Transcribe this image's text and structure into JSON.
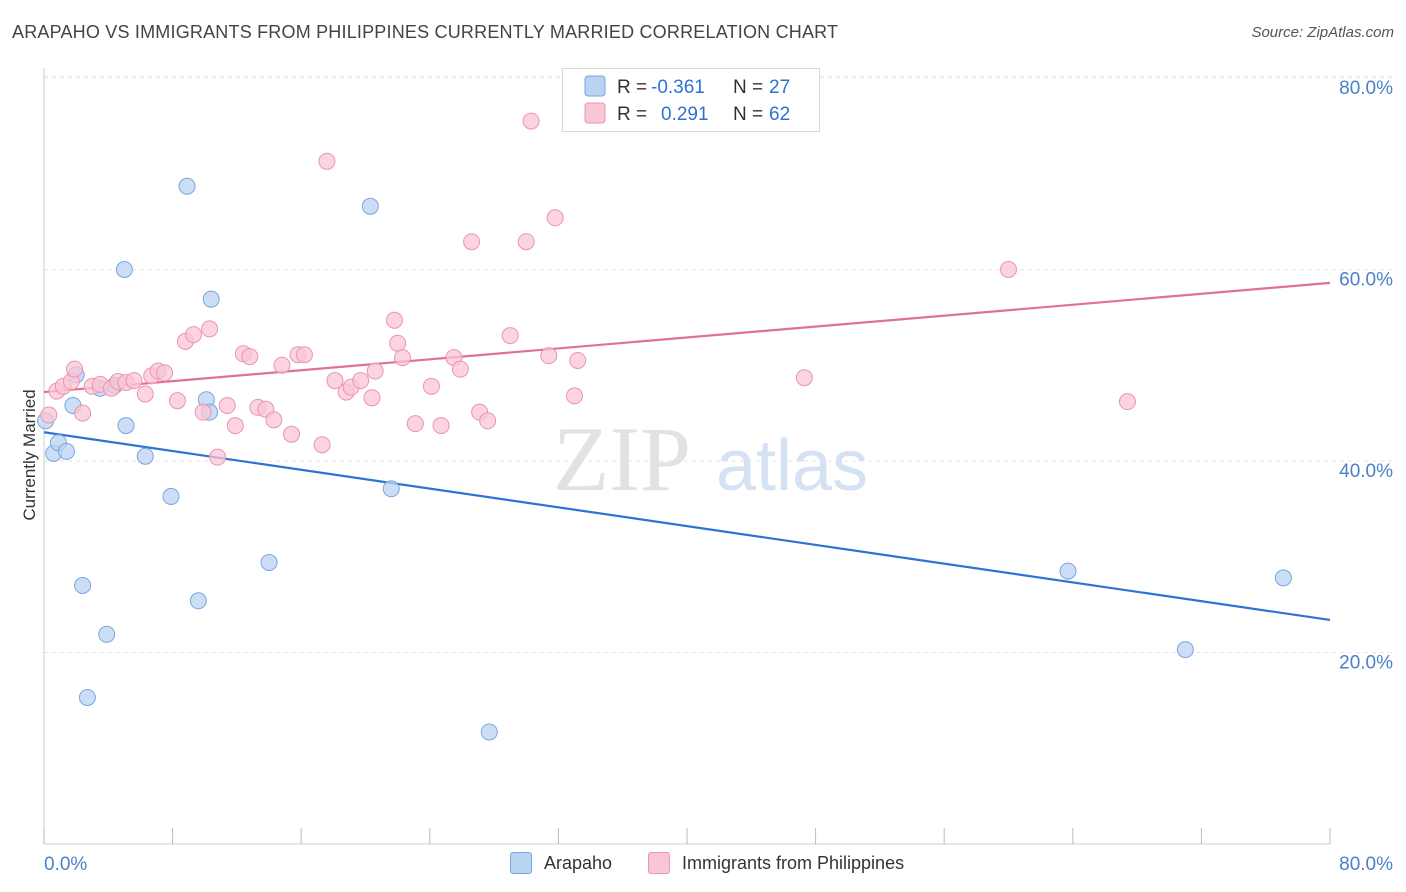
{
  "title": "ARAPAHO VS IMMIGRANTS FROM PHILIPPINES CURRENTLY MARRIED CORRELATION CHART",
  "source": "Source: ZipAtlas.com",
  "watermark": {
    "zip": "ZIP",
    "atlas": "atlas"
  },
  "colors": {
    "blue_fill": "#b9d3f3",
    "blue_stroke": "#7aa6dc",
    "blue_line": "#2f72d4",
    "pink_fill": "#f9c6d6",
    "pink_stroke": "#ea95b1",
    "pink_line": "#e0709a",
    "axis_label": "#4a7fc9"
  },
  "legend": {
    "r_label": "R =",
    "n_label": "N =",
    "rows": [
      {
        "r": "-0.361",
        "n": "27"
      },
      {
        "r": "0.291",
        "n": "62"
      }
    ]
  },
  "bottom_legend": [
    "Arapaho",
    "Immigrants from Philippines"
  ],
  "chart_data": {
    "type": "scatter",
    "title": "ARAPAHO VS IMMIGRANTS FROM PHILIPPINES CURRENTLY MARRIED CORRELATION CHART",
    "xlabel": "",
    "ylabel": "Currently Married",
    "xlim": [
      0,
      80
    ],
    "ylim": [
      0,
      83
    ],
    "x_ticks": [
      "0.0%",
      "80.0%"
    ],
    "y_ticks": [
      {
        "value": 20,
        "label": "20.0%"
      },
      {
        "value": 40,
        "label": "40.0%"
      },
      {
        "value": 60,
        "label": "60.0%"
      },
      {
        "value": 80,
        "label": "80.0%"
      }
    ],
    "grid": true,
    "legend_position": "top-center",
    "series": [
      {
        "name": "Arapaho",
        "color": "#7aa6dc",
        "points": [
          [
            0.1,
            44.2
          ],
          [
            0.6,
            40.8
          ],
          [
            0.9,
            41.9
          ],
          [
            1.4,
            41.0
          ],
          [
            1.8,
            45.8
          ],
          [
            2.0,
            49.0
          ],
          [
            2.4,
            27.0
          ],
          [
            2.7,
            15.3
          ],
          [
            3.5,
            47.6
          ],
          [
            3.9,
            21.9
          ],
          [
            4.4,
            47.9
          ],
          [
            5.1,
            43.7
          ],
          [
            5.0,
            60.0
          ],
          [
            6.3,
            40.5
          ],
          [
            7.9,
            36.3
          ],
          [
            8.9,
            68.7
          ],
          [
            9.6,
            25.4
          ],
          [
            10.1,
            46.4
          ],
          [
            10.3,
            45.1
          ],
          [
            10.4,
            56.9
          ],
          [
            14.0,
            29.4
          ],
          [
            20.3,
            66.6
          ],
          [
            21.6,
            37.1
          ],
          [
            27.7,
            11.7
          ],
          [
            63.7,
            28.5
          ],
          [
            71.0,
            20.3
          ],
          [
            77.1,
            27.8
          ]
        ],
        "trend": [
          [
            0,
            43.0
          ],
          [
            80,
            23.4
          ]
        ]
      },
      {
        "name": "Immigrants from Philippines",
        "color": "#ea95b1",
        "points": [
          [
            0.3,
            44.8
          ],
          [
            0.8,
            47.3
          ],
          [
            1.2,
            47.8
          ],
          [
            1.7,
            48.3
          ],
          [
            1.9,
            49.6
          ],
          [
            2.4,
            45.0
          ],
          [
            3.0,
            47.8
          ],
          [
            3.5,
            48.0
          ],
          [
            4.2,
            47.6
          ],
          [
            4.6,
            48.3
          ],
          [
            5.1,
            48.2
          ],
          [
            5.6,
            48.4
          ],
          [
            6.3,
            47.0
          ],
          [
            6.7,
            48.9
          ],
          [
            7.1,
            49.4
          ],
          [
            7.5,
            49.2
          ],
          [
            8.3,
            46.3
          ],
          [
            8.8,
            52.5
          ],
          [
            9.3,
            53.2
          ],
          [
            9.9,
            45.1
          ],
          [
            10.3,
            53.8
          ],
          [
            10.8,
            40.4
          ],
          [
            11.4,
            45.8
          ],
          [
            11.9,
            43.7
          ],
          [
            12.4,
            51.2
          ],
          [
            12.8,
            50.9
          ],
          [
            13.3,
            45.6
          ],
          [
            13.8,
            45.4
          ],
          [
            14.3,
            44.3
          ],
          [
            14.8,
            50.0
          ],
          [
            15.4,
            42.8
          ],
          [
            15.8,
            51.1
          ],
          [
            16.2,
            51.1
          ],
          [
            17.3,
            41.7
          ],
          [
            17.6,
            71.3
          ],
          [
            18.1,
            48.4
          ],
          [
            18.8,
            47.2
          ],
          [
            19.1,
            47.7
          ],
          [
            19.7,
            48.4
          ],
          [
            20.4,
            46.6
          ],
          [
            20.6,
            49.4
          ],
          [
            21.8,
            54.7
          ],
          [
            22.0,
            52.3
          ],
          [
            22.3,
            50.8
          ],
          [
            23.1,
            43.9
          ],
          [
            24.1,
            47.8
          ],
          [
            24.7,
            43.7
          ],
          [
            25.5,
            50.8
          ],
          [
            25.9,
            49.6
          ],
          [
            26.6,
            62.9
          ],
          [
            27.1,
            45.1
          ],
          [
            27.6,
            44.2
          ],
          [
            29.0,
            53.1
          ],
          [
            30.0,
            62.9
          ],
          [
            30.3,
            75.5
          ],
          [
            31.4,
            51.0
          ],
          [
            31.8,
            65.4
          ],
          [
            33.0,
            46.8
          ],
          [
            33.2,
            50.5
          ],
          [
            47.3,
            48.7
          ],
          [
            60.0,
            60.0
          ],
          [
            67.4,
            46.2
          ]
        ],
        "trend": [
          [
            0,
            47.2
          ],
          [
            80,
            58.6
          ]
        ]
      }
    ]
  }
}
